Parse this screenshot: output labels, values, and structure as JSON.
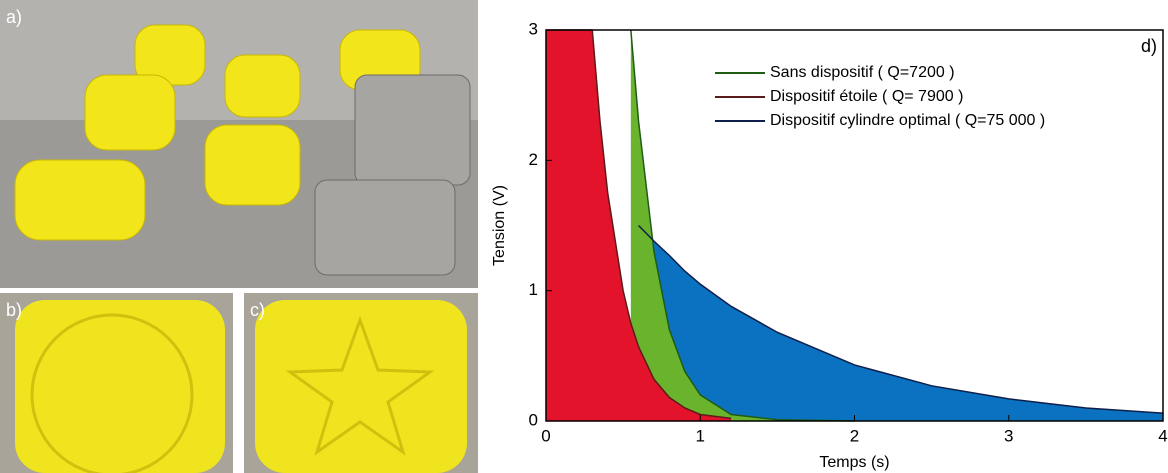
{
  "panels": {
    "a": "a)",
    "b": "b)",
    "c": "c)"
  },
  "chart_data": {
    "type": "line",
    "annotation": "d)",
    "x_label": "Temps (s)",
    "y_label": "Tension (V)",
    "x": [
      0,
      0.1,
      0.2,
      0.3,
      0.35,
      0.4,
      0.5,
      0.55,
      0.6,
      0.7,
      0.8,
      0.9,
      1.0,
      1.2,
      1.5,
      2,
      2.5,
      3,
      3.5,
      4
    ],
    "series": [
      {
        "name": "Sans dispositif ( Q=7200 )",
        "color": "#1f5c14",
        "fill_color": "#6ab42d",
        "values": [
          null,
          null,
          null,
          null,
          null,
          null,
          null,
          3,
          2.3,
          1.3,
          0.7,
          0.38,
          0.2,
          0.05,
          0.01,
          0,
          null,
          null,
          null,
          null
        ]
      },
      {
        "name": "Dispositif étoile ( Q= 7900 )",
        "color": "#5c1a1a",
        "fill_color": "#e3132c",
        "values": [
          3,
          3,
          3,
          3,
          2.3,
          1.75,
          1.0,
          0.75,
          0.57,
          0.32,
          0.18,
          0.1,
          0.05,
          0.02,
          null,
          null,
          null,
          null,
          null,
          null
        ]
      },
      {
        "name": "Dispositif cylindre optimal  ( Q=75 000 )",
        "color": "#0d1f4a",
        "fill_color": "#0a72c0",
        "values": [
          null,
          null,
          null,
          null,
          null,
          null,
          null,
          null,
          1.5,
          1.38,
          1.27,
          1.15,
          1.05,
          0.88,
          0.68,
          0.43,
          0.27,
          0.17,
          0.1,
          0.06
        ]
      }
    ],
    "xlim": [
      0,
      4
    ],
    "xticks": [
      0,
      1,
      2,
      3,
      4
    ],
    "ylim": [
      0,
      3
    ],
    "yticks": [
      0,
      1,
      2,
      3
    ]
  }
}
